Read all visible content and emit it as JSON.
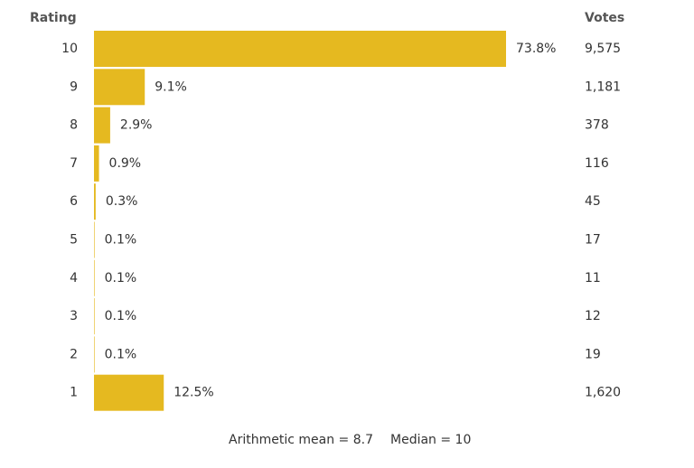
{
  "chart_data": {
    "type": "bar",
    "category_header": "Rating",
    "votes_header": "Votes",
    "categories": [
      "10",
      "9",
      "8",
      "7",
      "6",
      "5",
      "4",
      "3",
      "2",
      "1"
    ],
    "values": [
      73.8,
      9.1,
      2.9,
      0.9,
      0.3,
      0.1,
      0.1,
      0.1,
      0.1,
      12.5
    ],
    "value_labels": [
      "73.8%",
      "9.1%",
      "2.9%",
      "0.9%",
      "0.3%",
      "0.1%",
      "0.1%",
      "0.1%",
      "0.1%",
      "12.5%"
    ],
    "votes": [
      "9,575",
      "1,181",
      "378",
      "116",
      "45",
      "17",
      "11",
      "12",
      "19",
      "1,620"
    ],
    "color": "#e5b920",
    "mean": "Arithmetic mean = 8.7",
    "median": "Median = 10"
  }
}
